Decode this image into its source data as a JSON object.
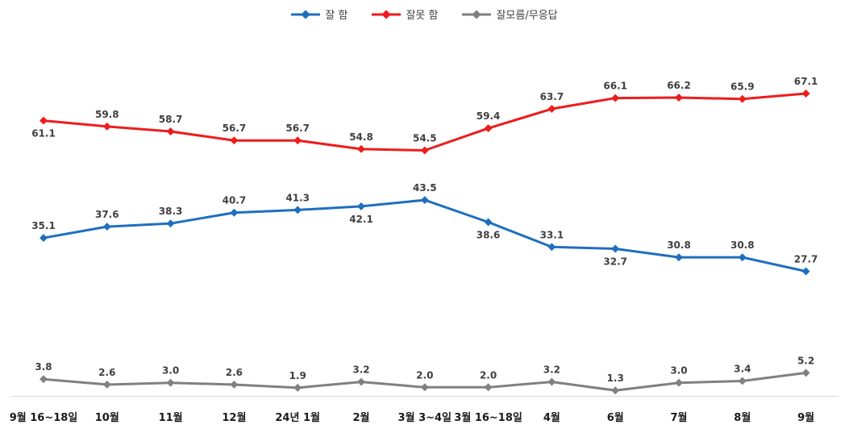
{
  "chart_data": {
    "type": "line",
    "categories": [
      "9월 16~18일",
      "10월",
      "11월",
      "12월",
      "24년 1월",
      "2월",
      "3월 3~4일",
      "3월 16~18일",
      "4월",
      "6월",
      "7월",
      "8월",
      "9월"
    ],
    "series": [
      {
        "name": "잘 함",
        "color": "#1f6fbf",
        "values": [
          35.1,
          37.6,
          38.3,
          40.7,
          41.3,
          42.1,
          43.5,
          38.6,
          33.1,
          32.7,
          30.8,
          30.8,
          27.7
        ],
        "value_labels": [
          "35.1",
          "37.6",
          "38.3",
          "40.7",
          "41.3",
          "42.1",
          "43.5",
          "38.6",
          "33.1",
          "32.7",
          "30.8",
          "30.8",
          "27.7"
        ]
      },
      {
        "name": "잘못 함",
        "color": "#ee1c1c",
        "values": [
          61.1,
          59.8,
          58.7,
          56.7,
          56.7,
          54.8,
          54.5,
          59.4,
          63.7,
          66.1,
          66.2,
          65.9,
          67.1
        ],
        "value_labels": [
          "61.1",
          "59.8",
          "58.7",
          "56.7",
          "56.7",
          "54.8",
          "54.5",
          "59.4",
          "63.7",
          "66.1",
          "66.2",
          "65.9",
          "67.1"
        ]
      },
      {
        "name": "잘모름/무응답",
        "color": "#808080",
        "values": [
          3.8,
          2.6,
          3.0,
          2.6,
          1.9,
          3.2,
          2.0,
          2.0,
          3.2,
          1.3,
          3.0,
          3.4,
          5.2
        ],
        "value_labels": [
          "3.8",
          "2.6",
          "3.0",
          "2.6",
          "1.9",
          "3.2",
          "2.0",
          "2.0",
          "3.2",
          "1.3",
          "3.0",
          "3.4",
          "5.2"
        ]
      }
    ],
    "ylim": [
      0,
      75
    ],
    "grid": false,
    "legend_position": "top-center"
  }
}
